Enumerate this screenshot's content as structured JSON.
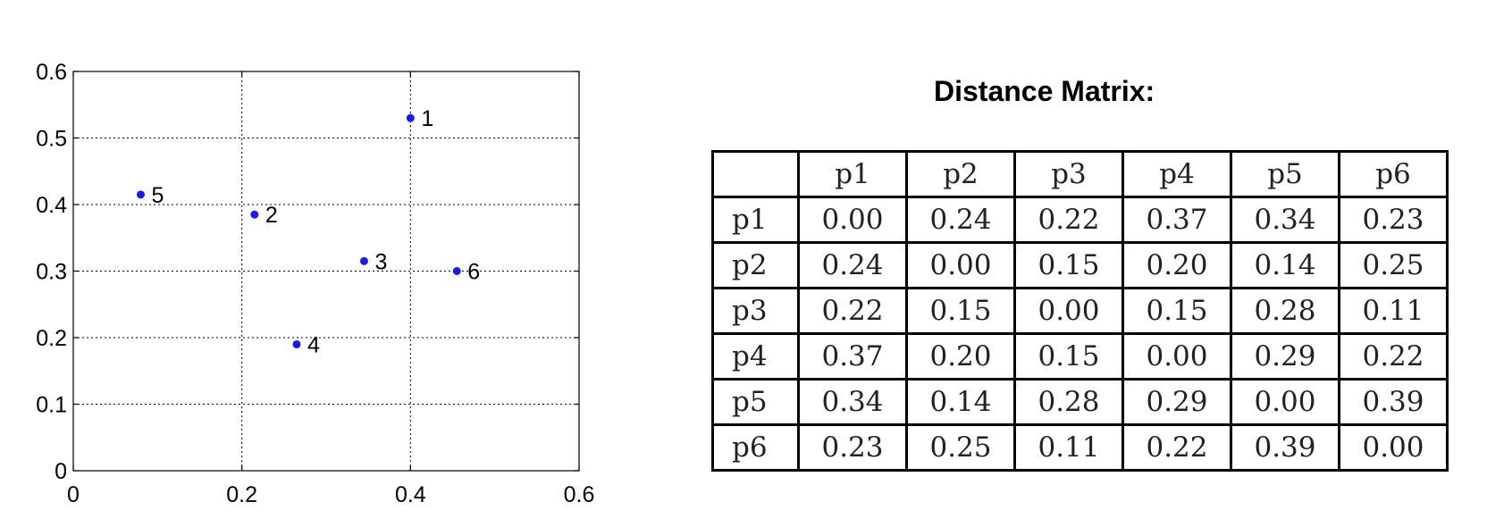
{
  "chart_data": {
    "type": "scatter",
    "xlim": [
      0,
      0.6
    ],
    "ylim": [
      0,
      0.6
    ],
    "grid": true,
    "xticks": [
      "0",
      "0.2",
      "0.4",
      "0.6"
    ],
    "yticks": [
      "0",
      "0.1",
      "0.2",
      "0.3",
      "0.4",
      "0.5",
      "0.6"
    ],
    "color": "#1a1aee",
    "points": [
      {
        "label": "1",
        "x": 0.4,
        "y": 0.53
      },
      {
        "label": "2",
        "x": 0.215,
        "y": 0.385
      },
      {
        "label": "3",
        "x": 0.345,
        "y": 0.315
      },
      {
        "label": "4",
        "x": 0.265,
        "y": 0.19
      },
      {
        "label": "5",
        "x": 0.08,
        "y": 0.415
      },
      {
        "label": "6",
        "x": 0.455,
        "y": 0.3
      }
    ]
  },
  "matrix": {
    "title": "Distance Matrix:",
    "headers": [
      "p1",
      "p2",
      "p3",
      "p4",
      "p5",
      "p6"
    ],
    "rows": [
      {
        "label": "p1",
        "values": [
          "0.00",
          "0.24",
          "0.22",
          "0.37",
          "0.34",
          "0.23"
        ]
      },
      {
        "label": "p2",
        "values": [
          "0.24",
          "0.00",
          "0.15",
          "0.20",
          "0.14",
          "0.25"
        ]
      },
      {
        "label": "p3",
        "values": [
          "0.22",
          "0.15",
          "0.00",
          "0.15",
          "0.28",
          "0.11"
        ]
      },
      {
        "label": "p4",
        "values": [
          "0.37",
          "0.20",
          "0.15",
          "0.00",
          "0.29",
          "0.22"
        ]
      },
      {
        "label": "p5",
        "values": [
          "0.34",
          "0.14",
          "0.28",
          "0.29",
          "0.00",
          "0.39"
        ]
      },
      {
        "label": "p6",
        "values": [
          "0.23",
          "0.25",
          "0.11",
          "0.22",
          "0.39",
          "0.00"
        ]
      }
    ]
  }
}
